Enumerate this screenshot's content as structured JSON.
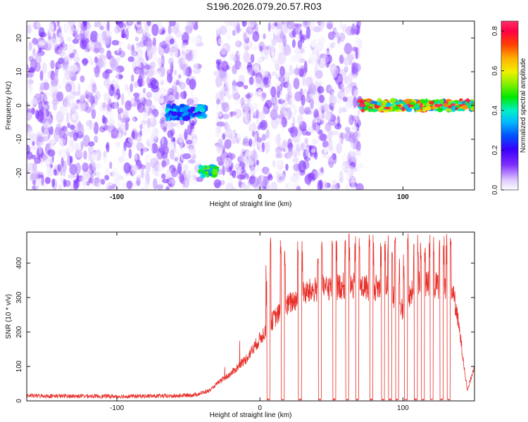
{
  "figure_title": "S196.2026.079.20.57.R03",
  "colors": {
    "snr_line": "#e8302a",
    "amp_low": "#ffffff",
    "amp_mid": "#6a00e8",
    "amp_high": "#ff0000"
  },
  "chart_data": [
    {
      "type": "heatmap",
      "title": "",
      "xlabel": "Height of straight line (km)",
      "ylabel": "Frequency (Hz)",
      "xlim": [
        -163,
        150
      ],
      "ylim": [
        -25,
        25
      ],
      "xticks": [
        -100,
        0,
        100
      ],
      "yticks": [
        -20,
        -10,
        0,
        10,
        20
      ],
      "colorbar": {
        "label": "Normalized spectral amplitude",
        "range": [
          0.0,
          0.85
        ],
        "ticks": [
          0.0,
          0.2,
          0.4,
          0.6,
          0.8
        ]
      },
      "regions": [
        {
          "name": "noise",
          "x": [
            -163,
            -42
          ],
          "freq_range": [
            -25,
            25
          ],
          "amplitude_range": [
            0.0,
            0.15
          ]
        },
        {
          "name": "noise",
          "x": [
            -30,
            70
          ],
          "freq_range": [
            -25,
            25
          ],
          "amplitude_range": [
            0.0,
            0.15
          ]
        },
        {
          "name": "signal",
          "x": [
            -65,
            -38
          ],
          "freq_range": [
            -4,
            0
          ],
          "amplitude_range": [
            0.2,
            0.4
          ]
        },
        {
          "name": "signal",
          "x": [
            -42,
            -30
          ],
          "freq_range": [
            -21,
            -18
          ],
          "amplitude_range": [
            0.3,
            0.55
          ]
        },
        {
          "name": "tone",
          "x": [
            70,
            150
          ],
          "freq_range": [
            -1.5,
            1.5
          ],
          "amplitude_range": [
            0.3,
            0.85
          ]
        }
      ]
    },
    {
      "type": "line",
      "title": "",
      "xlabel": "Height of straight line (km)",
      "ylabel": "SNR (10 * v/v)",
      "xlim": [
        -163,
        150
      ],
      "ylim": [
        0,
        490
      ],
      "xticks": [
        -100,
        0,
        100
      ],
      "yticks": [
        0,
        100,
        200,
        300,
        400
      ],
      "series": [
        {
          "name": "SNR",
          "x": [
            -163,
            -140,
            -120,
            -100,
            -80,
            -60,
            -45,
            -35,
            -30,
            -20,
            -10,
            0,
            10,
            20,
            30,
            40,
            50,
            60,
            70,
            80,
            90,
            95,
            100,
            110,
            120,
            130,
            135,
            140,
            145,
            150
          ],
          "y": [
            15,
            14,
            14,
            13,
            14,
            14,
            18,
            30,
            50,
            80,
            120,
            180,
            240,
            280,
            310,
            325,
            330,
            335,
            330,
            330,
            325,
            290,
            265,
            340,
            335,
            335,
            320,
            190,
            30,
            100
          ]
        }
      ],
      "dropouts_x": [
        6,
        16,
        28,
        42,
        52,
        61,
        68,
        78,
        86,
        91,
        96,
        102,
        109,
        114,
        120,
        127,
        132
      ],
      "spike_peak": 490
    }
  ]
}
